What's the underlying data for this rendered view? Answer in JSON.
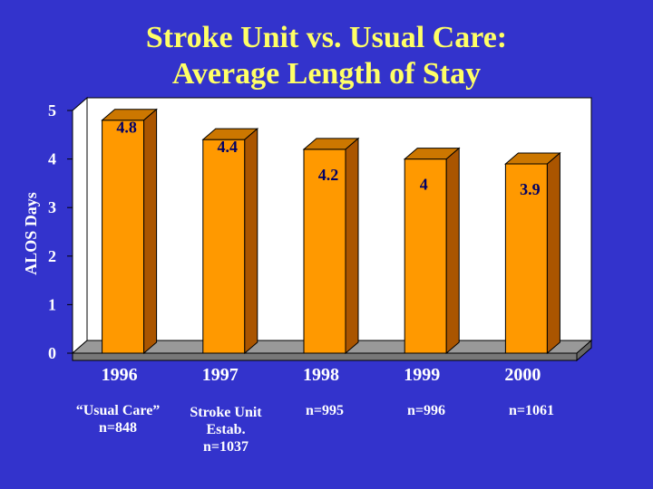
{
  "title": {
    "line1": "Stroke Unit vs. Usual Care:",
    "line2": "Average Length of Stay"
  },
  "chart_data": {
    "type": "bar",
    "title": "Stroke Unit vs. Usual Care: Average Length of Stay",
    "xlabel": "",
    "ylabel": "ALOS Days",
    "categories": [
      "1996",
      "1997",
      "1998",
      "1999",
      "2000"
    ],
    "values": [
      4.8,
      4.4,
      4.2,
      4,
      3.9
    ],
    "data_labels": [
      "4.8",
      "4.4",
      "4.2",
      "4",
      "3.9"
    ],
    "yticks": [
      "0",
      "1",
      "2",
      "3",
      "4",
      "5"
    ],
    "ylim": [
      0,
      5
    ],
    "grid": false,
    "legend": "none",
    "bar_3d": true
  },
  "category_notes": [
    {
      "line1": "“Usual Care”",
      "line2": "n=848",
      "line3": ""
    },
    {
      "line1": "Stroke Unit",
      "line2": "Estab.",
      "line3": "n=1037"
    },
    {
      "line1": "n=995",
      "line2": "",
      "line3": ""
    },
    {
      "line1": "n=996",
      "line2": "",
      "line3": ""
    },
    {
      "line1": "n=1061",
      "line2": "",
      "line3": ""
    }
  ],
  "colors": {
    "background": "#3333cc",
    "title": "#ffff66",
    "axis_text": "#ffffff",
    "plot_area": "#ffffff",
    "floor": "#999999",
    "bar_front": "#ff9900",
    "bar_top": "#cc7700",
    "bar_side": "#aa5500",
    "data_label": "#000066"
  }
}
